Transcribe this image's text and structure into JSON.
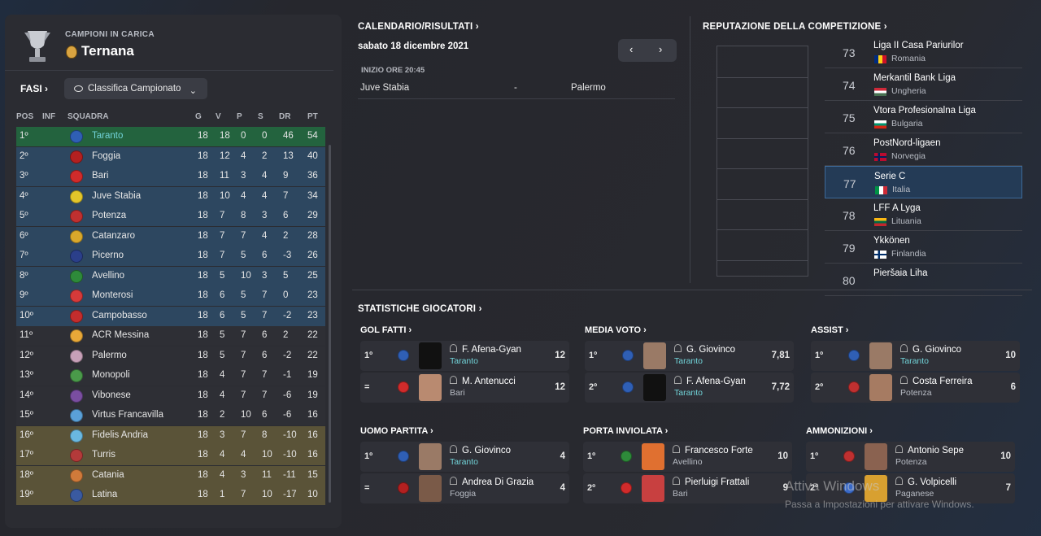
{
  "champions": {
    "label": "CAMPIONI IN CARICA",
    "team": "Ternana"
  },
  "phases": {
    "label": "FASI ›",
    "dropdown": "Classifica Campionato"
  },
  "table": {
    "headers": [
      "POS",
      "INF",
      "SQUADRA",
      "G",
      "V",
      "P",
      "S",
      "DR",
      "PT"
    ],
    "rows": [
      {
        "pos": "1º",
        "team": "Taranto",
        "g": "18",
        "v": "18",
        "p": "0",
        "s": "0",
        "dr": "46",
        "pt": "54",
        "zone": "promo",
        "crest": "#2f5fb5"
      },
      {
        "pos": "2º",
        "team": "Foggia",
        "g": "18",
        "v": "12",
        "p": "4",
        "s": "2",
        "dr": "13",
        "pt": "40",
        "zone": "playoff",
        "crest": "#b32020"
      },
      {
        "pos": "3º",
        "team": "Bari",
        "g": "18",
        "v": "11",
        "p": "3",
        "s": "4",
        "dr": "9",
        "pt": "36",
        "zone": "playoff",
        "crest": "#d12b2b"
      },
      {
        "pos": "4º",
        "team": "Juve Stabia",
        "g": "18",
        "v": "10",
        "p": "4",
        "s": "4",
        "dr": "7",
        "pt": "34",
        "zone": "playoff",
        "crest": "#e3c62a"
      },
      {
        "pos": "5º",
        "team": "Potenza",
        "g": "18",
        "v": "7",
        "p": "8",
        "s": "3",
        "dr": "6",
        "pt": "29",
        "zone": "playoff",
        "crest": "#c03030"
      },
      {
        "pos": "6º",
        "team": "Catanzaro",
        "g": "18",
        "v": "7",
        "p": "7",
        "s": "4",
        "dr": "2",
        "pt": "28",
        "zone": "playoff",
        "crest": "#d9a82b"
      },
      {
        "pos": "7º",
        "team": "Picerno",
        "g": "18",
        "v": "7",
        "p": "5",
        "s": "6",
        "dr": "-3",
        "pt": "26",
        "zone": "playoff",
        "crest": "#2b3f8a"
      },
      {
        "pos": "8º",
        "team": "Avellino",
        "g": "18",
        "v": "5",
        "p": "10",
        "s": "3",
        "dr": "5",
        "pt": "25",
        "zone": "playoff",
        "crest": "#2e8a3a"
      },
      {
        "pos": "9º",
        "team": "Monterosi",
        "g": "18",
        "v": "6",
        "p": "5",
        "s": "7",
        "dr": "0",
        "pt": "23",
        "zone": "playoff",
        "crest": "#d63a3a"
      },
      {
        "pos": "10º",
        "team": "Campobasso",
        "g": "18",
        "v": "6",
        "p": "5",
        "s": "7",
        "dr": "-2",
        "pt": "23",
        "zone": "playoff",
        "crest": "#c42d2d"
      },
      {
        "pos": "11º",
        "team": "ACR Messina",
        "g": "18",
        "v": "5",
        "p": "7",
        "s": "6",
        "dr": "2",
        "pt": "22",
        "zone": "mid",
        "crest": "#e8a838"
      },
      {
        "pos": "12º",
        "team": "Palermo",
        "g": "18",
        "v": "5",
        "p": "7",
        "s": "6",
        "dr": "-2",
        "pt": "22",
        "zone": "mid",
        "crest": "#c7a0b8"
      },
      {
        "pos": "13º",
        "team": "Monopoli",
        "g": "18",
        "v": "4",
        "p": "7",
        "s": "7",
        "dr": "-1",
        "pt": "19",
        "zone": "mid",
        "crest": "#4a9a4a"
      },
      {
        "pos": "14º",
        "team": "Vibonese",
        "g": "18",
        "v": "4",
        "p": "7",
        "s": "7",
        "dr": "-6",
        "pt": "19",
        "zone": "mid",
        "crest": "#7a4ea0"
      },
      {
        "pos": "15º",
        "team": "Virtus Francavilla",
        "g": "18",
        "v": "2",
        "p": "10",
        "s": "6",
        "dr": "-6",
        "pt": "16",
        "zone": "mid",
        "crest": "#5aa0d8"
      },
      {
        "pos": "16º",
        "team": "Fidelis Andria",
        "g": "18",
        "v": "3",
        "p": "7",
        "s": "8",
        "dr": "-10",
        "pt": "16",
        "zone": "releg",
        "crest": "#6ab8e0"
      },
      {
        "pos": "17º",
        "team": "Turris",
        "g": "18",
        "v": "4",
        "p": "4",
        "s": "10",
        "dr": "-10",
        "pt": "16",
        "zone": "releg",
        "crest": "#b33a3a"
      },
      {
        "pos": "18º",
        "team": "Catania",
        "g": "18",
        "v": "4",
        "p": "3",
        "s": "11",
        "dr": "-11",
        "pt": "15",
        "zone": "releg",
        "crest": "#d07a3a"
      },
      {
        "pos": "19º",
        "team": "Latina",
        "g": "18",
        "v": "1",
        "p": "7",
        "s": "10",
        "dr": "-17",
        "pt": "10",
        "zone": "releg",
        "crest": "#3a5aa0"
      }
    ]
  },
  "fixtures": {
    "title": "CALENDARIO/RISULTATI ›",
    "date": "sabato 18 dicembre 2021",
    "prev": "‹",
    "next": "›",
    "start": "INIZIO ORE 20:45",
    "home": "Juve Stabia",
    "sep": "-",
    "away": "Palermo"
  },
  "reputation": {
    "title": "REPUTAZIONE DELLA COMPETIZIONE ›",
    "items": [
      {
        "num": "73",
        "name": "Liga II Casa Pariurilor",
        "country": "Romania",
        "flag": [
          "#002b7f",
          "#fcd116",
          "#ce1126"
        ],
        "dir": "v"
      },
      {
        "num": "74",
        "name": "Merkantil Bank Liga",
        "country": "Ungheria",
        "flag": [
          "#ce2939",
          "#ffffff",
          "#477050"
        ],
        "dir": "h"
      },
      {
        "num": "75",
        "name": "Vtora Profesionalna Liga",
        "country": "Bulgaria",
        "flag": [
          "#ffffff",
          "#00966e",
          "#d62612"
        ],
        "dir": "h"
      },
      {
        "num": "76",
        "name": "PostNord-ligaen",
        "country": "Norvegia",
        "flag": [
          "#ba0c2f",
          "#ffffff",
          "#00205b"
        ],
        "dir": "n"
      },
      {
        "num": "77",
        "name": "Serie C",
        "country": "Italia",
        "flag": [
          "#009246",
          "#ffffff",
          "#ce2b37"
        ],
        "dir": "v",
        "selected": true
      },
      {
        "num": "78",
        "name": "LFF A Lyga",
        "country": "Lituania",
        "flag": [
          "#fdb913",
          "#006a44",
          "#c1272d"
        ],
        "dir": "h"
      },
      {
        "num": "79",
        "name": "Ykkönen",
        "country": "Finlandia",
        "flag": [
          "#ffffff",
          "#002f6c",
          "#ffffff"
        ],
        "dir": "f"
      },
      {
        "num": "80",
        "name": "Pieršaia Liha",
        "country": "",
        "flag": [
          "#c8313e",
          "#ffffff",
          "#4aa657"
        ],
        "dir": "h"
      }
    ]
  },
  "stats": {
    "title": "STATISTICHE GIOCATORI ›",
    "categories": [
      {
        "title": "GOL FATTI ›",
        "rows": [
          {
            "rank": "1º",
            "name": "F. Afena-Gyan",
            "team": "Taranto",
            "value": "12",
            "hl": true,
            "crest": "#2f5fb5",
            "photo": "#111111"
          },
          {
            "rank": "=",
            "name": "M. Antenucci",
            "team": "Bari",
            "value": "12",
            "hl": false,
            "crest": "#d12b2b",
            "photo": "#b98a70"
          }
        ]
      },
      {
        "title": "MEDIA VOTO ›",
        "rows": [
          {
            "rank": "1º",
            "name": "G. Giovinco",
            "team": "Taranto",
            "value": "7,81",
            "hl": true,
            "crest": "#2f5fb5",
            "photo": "#9a7a66"
          },
          {
            "rank": "2º",
            "name": "F. Afena-Gyan",
            "team": "Taranto",
            "value": "7,72",
            "hl": true,
            "crest": "#2f5fb5",
            "photo": "#111111"
          }
        ]
      },
      {
        "title": "ASSIST ›",
        "rows": [
          {
            "rank": "1º",
            "name": "G. Giovinco",
            "team": "Taranto",
            "value": "10",
            "hl": true,
            "crest": "#2f5fb5",
            "photo": "#9a7a66"
          },
          {
            "rank": "2º",
            "name": "Costa Ferreira",
            "team": "Potenza",
            "value": "6",
            "hl": false,
            "crest": "#c03030",
            "photo": "#a67b62"
          }
        ]
      },
      {
        "title": "UOMO PARTITA ›",
        "rows": [
          {
            "rank": "1º",
            "name": "G. Giovinco",
            "team": "Taranto",
            "value": "4",
            "hl": true,
            "crest": "#2f5fb5",
            "photo": "#9a7a66"
          },
          {
            "rank": "=",
            "name": "Andrea Di Grazia",
            "team": "Foggia",
            "value": "4",
            "hl": false,
            "crest": "#b32020",
            "photo": "#7a5a48"
          }
        ]
      },
      {
        "title": "PORTA INVIOLATA ›",
        "rows": [
          {
            "rank": "1º",
            "name": "Francesco Forte",
            "team": "Avellino",
            "value": "10",
            "hl": false,
            "crest": "#2e8a3a",
            "photo": "#e07030"
          },
          {
            "rank": "2º",
            "name": "Pierluigi Frattali",
            "team": "Bari",
            "value": "9",
            "hl": false,
            "crest": "#d12b2b",
            "photo": "#c84040"
          }
        ]
      },
      {
        "title": "AMMONIZIONI ›",
        "rows": [
          {
            "rank": "1º",
            "name": "Antonio Sepe",
            "team": "Potenza",
            "value": "10",
            "hl": false,
            "crest": "#c03030",
            "photo": "#8a6250"
          },
          {
            "rank": "2º",
            "name": "G. Volpicelli",
            "team": "Paganese",
            "value": "7",
            "hl": false,
            "crest": "#3a6ac8",
            "photo": "#d8a030"
          }
        ]
      }
    ]
  },
  "watermark": {
    "line1": "Attiva Windows",
    "line2": "Passa a Impostazioni per attivare Windows."
  }
}
